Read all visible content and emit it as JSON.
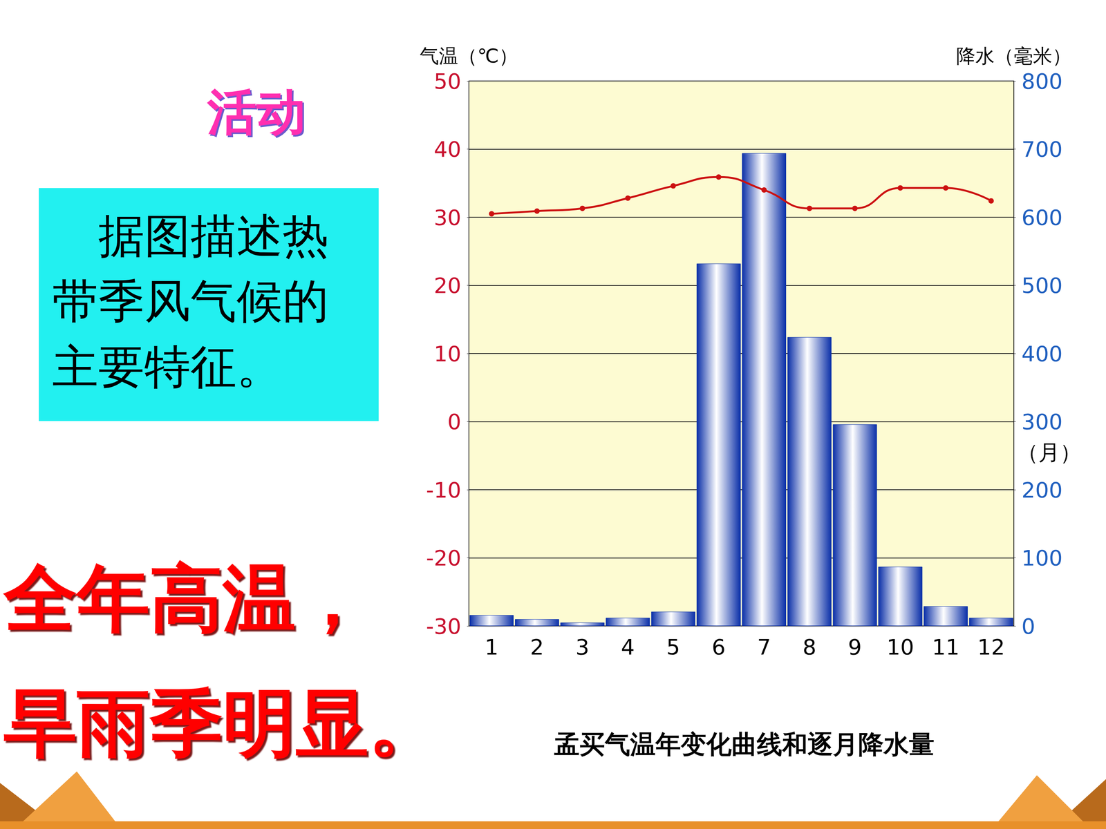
{
  "slide": {
    "heading": "活动",
    "prompt": "据图描述热带季风气候的主要特征。",
    "answer": [
      "全年高温，",
      "旱雨季明显。"
    ]
  },
  "chart_data": {
    "type": "bar",
    "title": "孟买气温年变化曲线和逐月降水量",
    "x_label": "（月）",
    "y_label": "气温（℃）",
    "y2_label": "降水（毫米）",
    "categories": [
      "1",
      "2",
      "3",
      "4",
      "5",
      "6",
      "7",
      "8",
      "9",
      "10",
      "11",
      "12"
    ],
    "series": [
      {
        "type": "bar",
        "axis": "y2",
        "color": "#0a2fa8",
        "values": [
          16,
          10,
          5,
          12,
          21,
          532,
          694,
          424,
          296,
          87,
          29,
          12
        ]
      },
      {
        "type": "line",
        "axis": "y",
        "color": "#cc1111",
        "marker": "circle",
        "line_style": "solid",
        "values": [
          30.5,
          30.9,
          31.3,
          32.8,
          34.6,
          35.9,
          34.0,
          31.3,
          31.3,
          34.3,
          34.3,
          32.4
        ]
      }
    ],
    "ylim": [
      -30,
      50
    ],
    "yticks": [
      -30,
      -20,
      -10,
      0,
      10,
      20,
      30,
      40,
      50
    ],
    "y2lim": [
      0,
      800
    ],
    "y2ticks": [
      0,
      100,
      200,
      300,
      400,
      500,
      600,
      700,
      800
    ],
    "grid": true
  }
}
